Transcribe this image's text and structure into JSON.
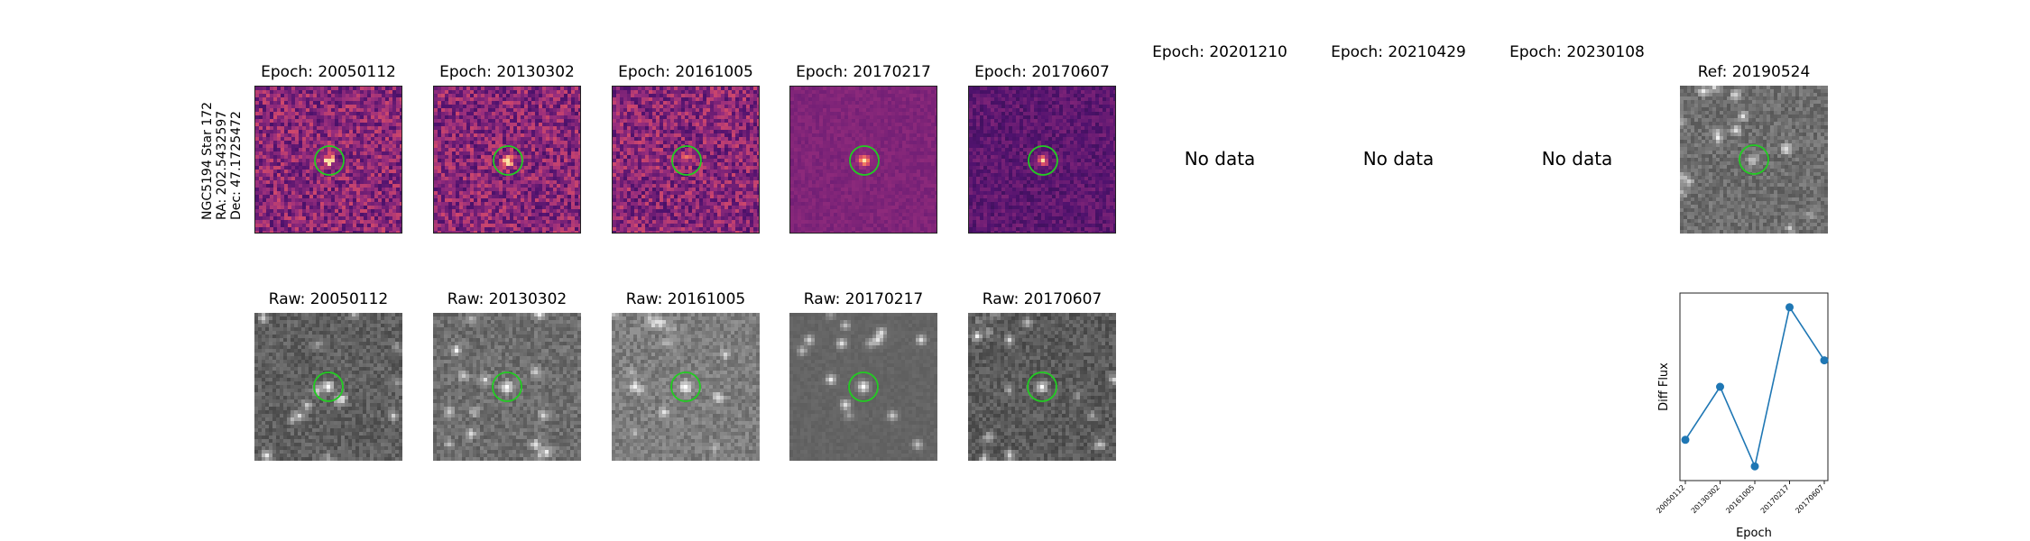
{
  "target": {
    "name": "NGC5194 Star 172",
    "ra": "RA: 202.5432597",
    "dec": "Dec: 47.1725472"
  },
  "diff_titles": [
    "Epoch: 20050112",
    "Epoch: 20130302",
    "Epoch: 20161005",
    "Epoch: 20170217",
    "Epoch: 20170607",
    "Epoch: 20201210",
    "Epoch: 20210429",
    "Epoch: 20230108"
  ],
  "no_data_text": "No data",
  "ref_title": "Ref: 20190524",
  "raw_titles": [
    "Raw: 20050112",
    "Raw: 20130302",
    "Raw: 20161005",
    "Raw: 20170217",
    "Raw: 20170607"
  ],
  "colors": {
    "marker_circle": "#22cc22",
    "line": "#1f77b4"
  },
  "chart_data": [
    {
      "type": "line",
      "categories": [
        "20050112",
        "20130302",
        "20161005",
        "20170217",
        "20170607"
      ],
      "values": [
        0.2,
        0.5,
        0.05,
        0.95,
        0.65
      ],
      "xlabel": "Epoch",
      "ylabel": "Diff Flux",
      "grid": false,
      "yticks_shown": false
    }
  ]
}
